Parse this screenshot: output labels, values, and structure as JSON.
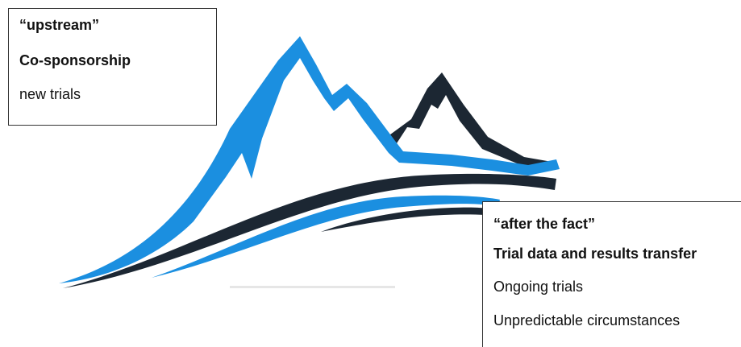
{
  "colors": {
    "blue_mountain": "#1b8fe0",
    "dark_mountain": "#1c2733",
    "wave_blue": "#1b8fe0",
    "wave_dark": "#1c2733"
  },
  "upstream_box": {
    "title": "“upstream”",
    "heading": "Co-sponsorship",
    "item": "new trials"
  },
  "after_box": {
    "title": "“after the fact”",
    "heading": "Trial data and results transfer",
    "items": [
      "Ongoing trials",
      "Unpredictable circumstances"
    ]
  }
}
